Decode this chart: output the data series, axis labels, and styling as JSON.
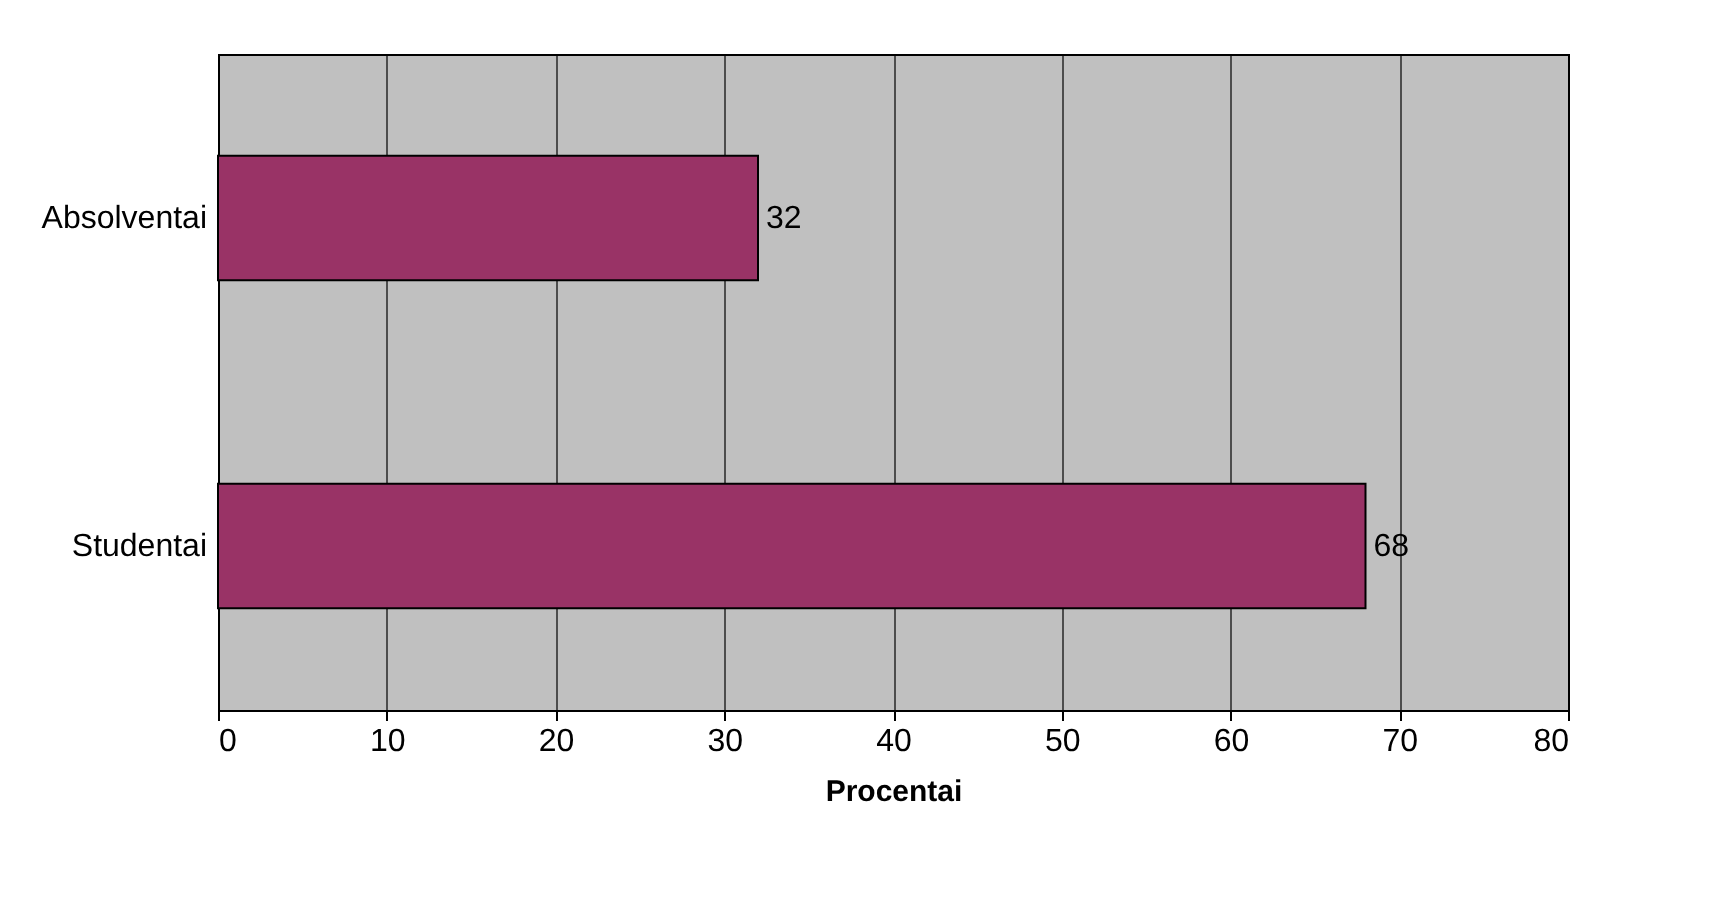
{
  "chart_data": {
    "type": "bar",
    "orientation": "horizontal",
    "categories": [
      "Absolventai",
      "Studentai"
    ],
    "values": [
      32,
      68
    ],
    "color": "#993366",
    "xlabel": "Procentai",
    "xlim": [
      0,
      80
    ],
    "xticks": [
      0,
      10,
      20,
      30,
      40,
      50,
      60,
      70,
      80
    ],
    "grid": "x",
    "data_labels": true
  }
}
